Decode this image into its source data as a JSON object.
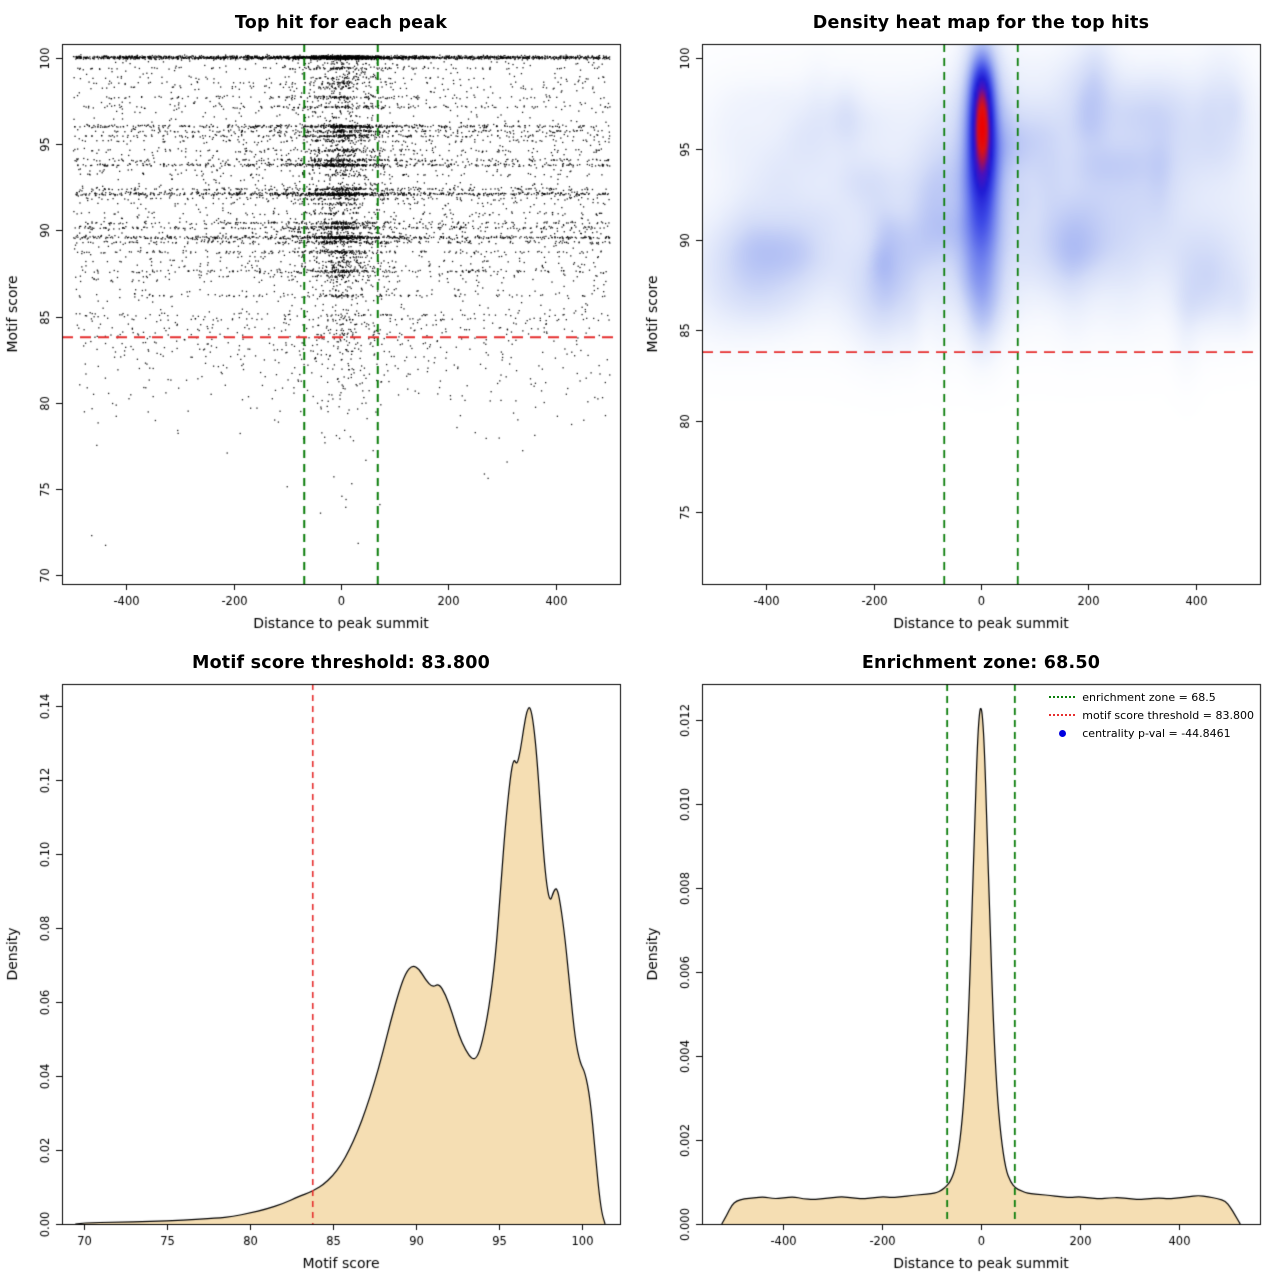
{
  "page": {
    "background": "#ffffff"
  },
  "chart_data": [
    {
      "id": "top-hits-scatter",
      "type": "scatter",
      "title": "Top hit for each peak",
      "xlabel": "Distance to peak summit",
      "ylabel": "Motif score",
      "xlim": [
        -520,
        520
      ],
      "ylim": [
        69.5,
        100.8
      ],
      "xticks": [
        -400,
        -200,
        0,
        200,
        400
      ],
      "xtick_labels": [
        "-400",
        "-200",
        "0",
        "200",
        "400"
      ],
      "yticks": [
        70,
        75,
        80,
        85,
        90,
        95,
        100
      ],
      "ytick_labels": [
        "70",
        "75",
        "80",
        "85",
        "90",
        "95",
        "100"
      ],
      "point_color": "#000000",
      "grid": false,
      "vlines": [
        {
          "x": -68.5,
          "color": "#0a7d0a",
          "dash": [
            8,
            6
          ],
          "width": 2
        },
        {
          "x": 68.5,
          "color": "#0a7d0a",
          "dash": [
            8,
            6
          ],
          "width": 2
        }
      ],
      "hlines": [
        {
          "y": 83.8,
          "color": "#e62e2e",
          "dash": [
            11,
            7
          ],
          "width": 2
        }
      ],
      "generator": {
        "seed": 1234,
        "n_background": 6500,
        "n_center": 5000,
        "center_scale_narrow": 32,
        "center_scale_wide": 78,
        "narrow_fraction": 0.7,
        "band_start": 84.3,
        "band_end": 99.9,
        "band_step": 0.28,
        "band_jitter": 0.05,
        "weight_exponent": 2.2,
        "continuum_fraction": 0.1,
        "tail_fraction": 0.06,
        "tail_base": 84.4,
        "tail_scale": 2.4,
        "hot_bands": [
          100,
          97.4,
          96.6,
          96.0,
          94.7,
          93.9,
          92.1,
          89.6,
          88.9,
          88.1,
          87.3
        ],
        "hot_boost": 3.2,
        "top_band": {
          "score": 100.05,
          "weight": 2.6
        }
      }
    },
    {
      "id": "density-heatmap",
      "type": "heatmap",
      "title": "Density heat map for the top hits",
      "xlabel": "Distance to peak summit",
      "ylabel": "Motif score",
      "xlim": [
        -520,
        520
      ],
      "ylim": [
        71,
        100.8
      ],
      "xticks": [
        -400,
        -200,
        0,
        200,
        400
      ],
      "xtick_labels": [
        "-400",
        "-200",
        "0",
        "200",
        "400"
      ],
      "yticks": [
        75,
        80,
        85,
        90,
        95,
        100
      ],
      "ytick_labels": [
        "75",
        "80",
        "85",
        "90",
        "95",
        "100"
      ],
      "hotspot": {
        "x": 0,
        "y": 96.6
      },
      "kernels": [
        {
          "x": 0,
          "y": 96.6,
          "sx": 14,
          "sy": 1.9,
          "a": 2.2
        },
        {
          "x": 0,
          "y": 96.2,
          "sx": 24,
          "sy": 3.2,
          "a": 1.2
        },
        {
          "x": 0,
          "y": 98.8,
          "sx": 15,
          "sy": 1.1,
          "a": 0.5
        },
        {
          "x": 0,
          "y": 93.4,
          "sx": 20,
          "sy": 2.2,
          "a": 0.7
        },
        {
          "x": 0,
          "y": 90.2,
          "sx": 26,
          "sy": 2.6,
          "a": 0.6
        },
        {
          "x": 0,
          "y": 87.6,
          "sx": 24,
          "sy": 2.0,
          "a": 0.34
        },
        {
          "x": 0,
          "y": 85.6,
          "sx": 20,
          "sy": 1.4,
          "a": 0.18
        },
        {
          "x": -260,
          "y": 89.4,
          "sx": 190,
          "sy": 2.6,
          "a": 0.15
        },
        {
          "x": 260,
          "y": 89.6,
          "sx": 190,
          "sy": 2.6,
          "a": 0.14
        },
        {
          "x": -240,
          "y": 96.1,
          "sx": 190,
          "sy": 2.3,
          "a": 0.12
        },
        {
          "x": 260,
          "y": 96.4,
          "sx": 190,
          "sy": 2.3,
          "a": 0.12
        },
        {
          "x": 0,
          "y": 92.3,
          "sx": 320,
          "sy": 3.6,
          "a": 0.08
        },
        {
          "x": -430,
          "y": 88.6,
          "sx": 80,
          "sy": 1.9,
          "a": 0.16
        },
        {
          "x": 440,
          "y": 89.1,
          "sx": 75,
          "sy": 1.9,
          "a": 0.15
        },
        {
          "x": -110,
          "y": 88.8,
          "sx": 55,
          "sy": 1.7,
          "a": 0.16
        },
        {
          "x": 130,
          "y": 89.3,
          "sx": 55,
          "sy": 1.7,
          "a": 0.15
        }
      ],
      "noise": {
        "seed": 7,
        "count": 130,
        "x_range": [
          -500,
          500
        ],
        "y_range": [
          85.5,
          99.5
        ],
        "sx_range": [
          15,
          55
        ],
        "sy_range": [
          0.7,
          2.0
        ],
        "amp_range": [
          0.03,
          0.12
        ]
      },
      "colormap": [
        [
          0,
          "#ffffff"
        ],
        [
          0.05,
          "#f7f9fe"
        ],
        [
          0.11,
          "#eaeffc"
        ],
        [
          0.2,
          "#d3dcf8"
        ],
        [
          0.32,
          "#a8b7f3"
        ],
        [
          0.45,
          "#7283ee"
        ],
        [
          0.58,
          "#3d49e6"
        ],
        [
          0.7,
          "#201cd4"
        ],
        [
          0.8,
          "#4a10bc"
        ],
        [
          0.88,
          "#a50f55"
        ],
        [
          0.94,
          "#dd1111"
        ],
        [
          1,
          "#ee0000"
        ]
      ],
      "gamma": 0.72,
      "vlines": [
        {
          "x": -68.5,
          "color": "#0a7d0a",
          "dash": [
            8,
            6
          ],
          "width": 1.8
        },
        {
          "x": 68.5,
          "color": "#0a7d0a",
          "dash": [
            8,
            6
          ],
          "width": 1.8
        }
      ],
      "hlines": [
        {
          "y": 83.8,
          "color": "#e62e2e",
          "dash": [
            11,
            7
          ],
          "width": 1.8
        }
      ]
    },
    {
      "id": "motif-score-density",
      "type": "area",
      "title": "Motif score threshold: 83.800",
      "xlabel": "Motif score",
      "ylabel": "Density",
      "xlim": [
        68.7,
        102.3
      ],
      "ylim": [
        0,
        0.146
      ],
      "xticks": [
        70,
        75,
        80,
        85,
        90,
        95,
        100
      ],
      "xtick_labels": [
        "70",
        "75",
        "80",
        "85",
        "90",
        "95",
        "100"
      ],
      "yticks": [
        0,
        0.02,
        0.04,
        0.06,
        0.08,
        0.1,
        0.12,
        0.14
      ],
      "ytick_labels": [
        "0.00",
        "0.02",
        "0.04",
        "0.06",
        "0.08",
        "0.10",
        "0.12",
        "0.14"
      ],
      "fill_color": "#f5deb3",
      "line_color": "#000000",
      "threshold": 83.8,
      "vlines": [
        {
          "x": 83.8,
          "color": "#e62e2e",
          "dash": [
            6,
            5
          ],
          "width": 1.6
        }
      ],
      "hlines": [],
      "points": [
        [
          69.5,
          0
        ],
        [
          70,
          0.0003
        ],
        [
          72,
          0.0005
        ],
        [
          74,
          0.0007
        ],
        [
          76,
          0.001
        ],
        [
          78,
          0.0016
        ],
        [
          79,
          0.002
        ],
        [
          80,
          0.003
        ],
        [
          81,
          0.004
        ],
        [
          82,
          0.0055
        ],
        [
          83,
          0.0075
        ],
        [
          83.6,
          0.0085
        ],
        [
          84,
          0.0095
        ],
        [
          84.4,
          0.0105
        ],
        [
          85,
          0.013
        ],
        [
          85.5,
          0.016
        ],
        [
          86,
          0.02
        ],
        [
          86.5,
          0.025
        ],
        [
          87,
          0.031
        ],
        [
          87.5,
          0.038
        ],
        [
          88,
          0.046
        ],
        [
          88.5,
          0.055
        ],
        [
          89,
          0.063
        ],
        [
          89.4,
          0.068
        ],
        [
          89.8,
          0.07
        ],
        [
          90.2,
          0.069
        ],
        [
          90.6,
          0.066
        ],
        [
          91,
          0.064
        ],
        [
          91.4,
          0.065
        ],
        [
          91.8,
          0.062
        ],
        [
          92.2,
          0.057
        ],
        [
          92.6,
          0.051
        ],
        [
          93,
          0.047
        ],
        [
          93.4,
          0.0445
        ],
        [
          93.7,
          0.045
        ],
        [
          94,
          0.049
        ],
        [
          94.4,
          0.058
        ],
        [
          94.8,
          0.072
        ],
        [
          95.1,
          0.09
        ],
        [
          95.4,
          0.108
        ],
        [
          95.7,
          0.121
        ],
        [
          95.9,
          0.126
        ],
        [
          96.1,
          0.124
        ],
        [
          96.3,
          0.128
        ],
        [
          96.5,
          0.134
        ],
        [
          96.7,
          0.139
        ],
        [
          96.9,
          0.14
        ],
        [
          97.1,
          0.135
        ],
        [
          97.3,
          0.126
        ],
        [
          97.5,
          0.113
        ],
        [
          97.7,
          0.1
        ],
        [
          97.9,
          0.091
        ],
        [
          98.1,
          0.087
        ],
        [
          98.3,
          0.09
        ],
        [
          98.5,
          0.091
        ],
        [
          98.7,
          0.087
        ],
        [
          99,
          0.077
        ],
        [
          99.3,
          0.063
        ],
        [
          99.6,
          0.05
        ],
        [
          99.9,
          0.0435
        ],
        [
          100.2,
          0.041
        ],
        [
          100.5,
          0.034
        ],
        [
          100.8,
          0.02
        ],
        [
          101,
          0.01
        ],
        [
          101.2,
          0.003
        ],
        [
          101.4,
          0
        ]
      ]
    },
    {
      "id": "summit-distance-density",
      "type": "area",
      "title": "Enrichment zone: 68.50",
      "xlabel": "Distance to peak summit",
      "ylabel": "Density",
      "xlim": [
        -565,
        565
      ],
      "ylim": [
        0,
        0.01285
      ],
      "xticks": [
        -400,
        -200,
        0,
        200,
        400
      ],
      "xtick_labels": [
        "-400",
        "-200",
        "0",
        "200",
        "400"
      ],
      "yticks": [
        0,
        0.002,
        0.004,
        0.006,
        0.008,
        0.01,
        0.012
      ],
      "ytick_labels": [
        "0.000",
        "0.002",
        "0.004",
        "0.006",
        "0.008",
        "0.010",
        "0.012"
      ],
      "fill_color": "#f5deb3",
      "line_color": "#000000",
      "enrichment_zone": 68.5,
      "vlines": [
        {
          "x": -68.5,
          "color": "#0a7d0a",
          "dash": [
            7,
            5
          ],
          "width": 1.8
        },
        {
          "x": 68.5,
          "color": "#0a7d0a",
          "dash": [
            7,
            5
          ],
          "width": 1.8
        }
      ],
      "hlines": [],
      "legend": [
        {
          "label": "enrichment zone = 68.5",
          "color": "#0a7d0a",
          "marker": "dotted-line"
        },
        {
          "label": "motif score threshold = 83.800",
          "color": "#e62e2e",
          "marker": "dotted-line"
        },
        {
          "label": "centrality p-val = -44.8461",
          "color": "#0000e0",
          "marker": "dot"
        }
      ],
      "points": [
        [
          -525,
          0
        ],
        [
          -515,
          0.0002
        ],
        [
          -505,
          0.00045
        ],
        [
          -495,
          0.00055
        ],
        [
          -480,
          0.0006
        ],
        [
          -460,
          0.00062
        ],
        [
          -440,
          0.00065
        ],
        [
          -420,
          0.0006
        ],
        [
          -400,
          0.00062
        ],
        [
          -380,
          0.00065
        ],
        [
          -360,
          0.0006
        ],
        [
          -340,
          0.00058
        ],
        [
          -320,
          0.0006
        ],
        [
          -300,
          0.00063
        ],
        [
          -280,
          0.00065
        ],
        [
          -260,
          0.00062
        ],
        [
          -240,
          0.0006
        ],
        [
          -220,
          0.00062
        ],
        [
          -200,
          0.00065
        ],
        [
          -180,
          0.00063
        ],
        [
          -160,
          0.00065
        ],
        [
          -140,
          0.00068
        ],
        [
          -120,
          0.0007
        ],
        [
          -100,
          0.00072
        ],
        [
          -90,
          0.00075
        ],
        [
          -80,
          0.0008
        ],
        [
          -70,
          0.0009
        ],
        [
          -60,
          0.00105
        ],
        [
          -50,
          0.0014
        ],
        [
          -40,
          0.0022
        ],
        [
          -32,
          0.0034
        ],
        [
          -25,
          0.005
        ],
        [
          -18,
          0.0075
        ],
        [
          -12,
          0.0098
        ],
        [
          -7,
          0.0115
        ],
        [
          -3,
          0.0122
        ],
        [
          0,
          0.0123
        ],
        [
          3,
          0.0121
        ],
        [
          7,
          0.0113
        ],
        [
          12,
          0.0095
        ],
        [
          18,
          0.0072
        ],
        [
          25,
          0.0048
        ],
        [
          32,
          0.0032
        ],
        [
          40,
          0.0021
        ],
        [
          50,
          0.0013
        ],
        [
          60,
          0.001
        ],
        [
          70,
          0.00085
        ],
        [
          80,
          0.0008
        ],
        [
          90,
          0.00075
        ],
        [
          100,
          0.00072
        ],
        [
          120,
          0.0007
        ],
        [
          140,
          0.00068
        ],
        [
          160,
          0.00065
        ],
        [
          180,
          0.00063
        ],
        [
          200,
          0.00065
        ],
        [
          220,
          0.00062
        ],
        [
          240,
          0.0006
        ],
        [
          260,
          0.00062
        ],
        [
          280,
          0.00063
        ],
        [
          300,
          0.0006
        ],
        [
          320,
          0.00058
        ],
        [
          340,
          0.0006
        ],
        [
          360,
          0.00062
        ],
        [
          380,
          0.0006
        ],
        [
          400,
          0.00062
        ],
        [
          420,
          0.00065
        ],
        [
          440,
          0.00068
        ],
        [
          460,
          0.00065
        ],
        [
          480,
          0.0006
        ],
        [
          495,
          0.00055
        ],
        [
          505,
          0.0004
        ],
        [
          515,
          0.0002
        ],
        [
          525,
          0
        ]
      ]
    }
  ]
}
